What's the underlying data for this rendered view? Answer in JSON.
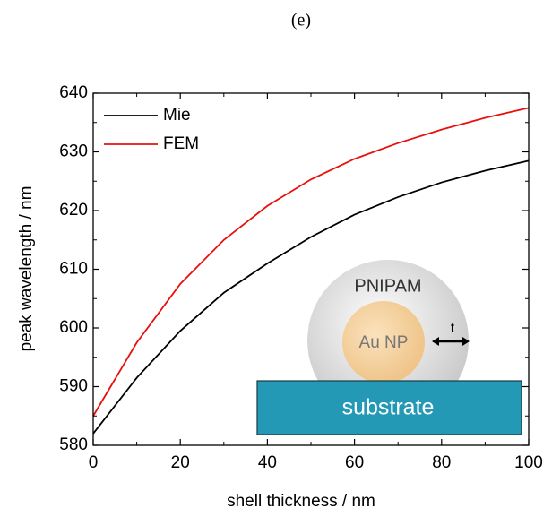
{
  "chart_data": {
    "type": "line",
    "title": "(e)",
    "xlabel": "shell thickness / nm",
    "ylabel": "peak wavelength / nm",
    "x": [
      0,
      10,
      20,
      30,
      40,
      50,
      60,
      70,
      80,
      90,
      100
    ],
    "series": [
      {
        "name": "Mie",
        "color": "#000000",
        "values": [
          582,
          591.5,
          599.5,
          606,
          611,
          615.5,
          619.3,
          622.3,
          624.8,
          626.8,
          628.5
        ]
      },
      {
        "name": "FEM",
        "color": "#e8100c",
        "values": [
          585,
          597.5,
          607.5,
          615,
          620.8,
          625.3,
          628.8,
          631.5,
          633.8,
          635.8,
          637.5
        ]
      }
    ],
    "xlim": [
      0,
      100
    ],
    "xticks": [
      0,
      20,
      40,
      60,
      80,
      100
    ],
    "ylim": [
      580,
      640
    ],
    "yticks": [
      580,
      590,
      600,
      610,
      620,
      630,
      640
    ],
    "legend": "upper left",
    "annotations": [
      "PNIPAM",
      "Au NP",
      "t",
      "substrate"
    ]
  }
}
